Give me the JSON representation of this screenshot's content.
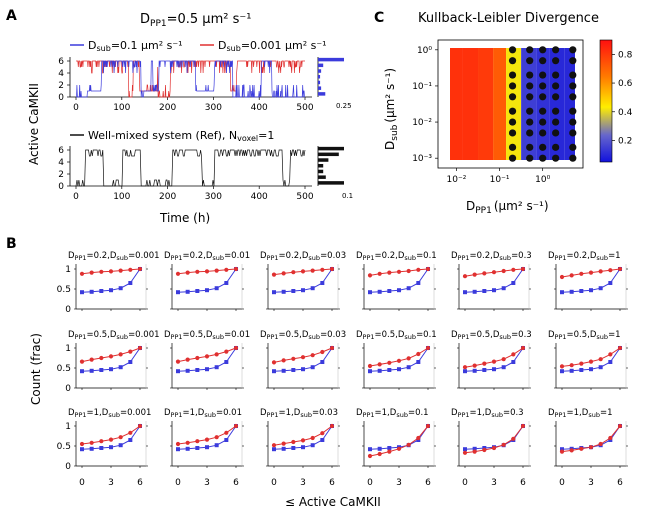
{
  "panel_labels": {
    "a": "A",
    "b": "B",
    "c": "C"
  },
  "colors": {
    "blue": "#3b3bdc",
    "red": "#e03030",
    "black": "#111111"
  },
  "panel_a": {
    "title": "D_PP1 = 0.5 µm² s⁻¹",
    "title_main": "D",
    "title_sub": "PP1",
    "title_rest": "=0.5 µm² s⁻¹",
    "legend_blue": "D_sub=0.1 µm² s⁻¹",
    "legend_blue_main": "D",
    "legend_blue_sub": "sub",
    "legend_blue_rest": "=0.1 µm² s⁻¹",
    "legend_red": "D_sub=0.001 µm² s⁻¹",
    "legend_red_main": "D",
    "legend_red_sub": "sub",
    "legend_red_rest": "=0.001 µm² s⁻¹",
    "legend_black_main": "Well-mixed system (Ref), N",
    "legend_black_sub": "voxel",
    "legend_black_rest": "=1",
    "ylabel": "Active CaMKII",
    "xlabel": "Time (h)",
    "xticks": [
      0,
      100,
      200,
      300,
      400,
      500
    ],
    "yticks": [
      0,
      2,
      4,
      6
    ],
    "xlim": [
      0,
      500
    ],
    "ylim": [
      0,
      6
    ],
    "hist_top_max_label": "0.25",
    "hist_bottom_max_label": "0.1",
    "hist_top": [
      0.07,
      0.03,
      0.02,
      0.02,
      0.03,
      0.05,
      0.25
    ],
    "hist_bottom": [
      0.1,
      0.03,
      0.02,
      0.02,
      0.04,
      0.08,
      0.1
    ]
  },
  "panel_c": {
    "title": "Kullback-Leibler Divergence",
    "ylabel_main": "D",
    "ylabel_sub": "sub",
    "ylabel_units": "(µm² s⁻¹)",
    "xlabel_main": "D",
    "xlabel_sub": "PP1",
    "xlabel_units": "(µm² s⁻¹)",
    "x_tick_labels": [
      "10⁻²",
      "10⁻¹",
      "10⁰"
    ],
    "y_tick_labels": [
      "10⁰",
      "10⁻¹",
      "10⁻²",
      "10⁻³"
    ],
    "colorbar_ticks": [
      "0.8",
      "0.6",
      "0.4",
      "0.2"
    ],
    "colorbar_range": [
      0.05,
      0.9
    ],
    "columns_dpp1": [
      0.01,
      0.02,
      0.05,
      0.1,
      0.2,
      0.5,
      1,
      2,
      5
    ],
    "column_kl": [
      0.82,
      0.82,
      0.8,
      0.72,
      0.42,
      0.15,
      0.12,
      0.1,
      0.1
    ],
    "grid_points_x": [
      0.2,
      0.5,
      1,
      2,
      5
    ],
    "grid_points_y": [
      0.001,
      0.002,
      0.005,
      0.01,
      0.02,
      0.05,
      0.1,
      0.2,
      0.5,
      1
    ]
  },
  "panel_b": {
    "ylabel": "Count (frac)",
    "xlabel": "≤ Active CaMKII",
    "xticks": [
      "0",
      "3",
      "6"
    ],
    "yticks": [
      "0",
      "0.5",
      "1"
    ],
    "rows": [
      {
        "dpp1": "0.2",
        "panels": [
          {
            "dsub": "0.001",
            "red": [
              0.88,
              0.91,
              0.93,
              0.94,
              0.96,
              0.98,
              1.0
            ],
            "blue": [
              0.42,
              0.43,
              0.45,
              0.47,
              0.52,
              0.65,
              1.0
            ]
          },
          {
            "dsub": "0.01",
            "red": [
              0.88,
              0.91,
              0.93,
              0.94,
              0.96,
              0.98,
              1.0
            ],
            "blue": [
              0.42,
              0.43,
              0.45,
              0.47,
              0.52,
              0.65,
              1.0
            ]
          },
          {
            "dsub": "0.03",
            "red": [
              0.86,
              0.89,
              0.92,
              0.94,
              0.96,
              0.98,
              1.0
            ],
            "blue": [
              0.42,
              0.43,
              0.45,
              0.47,
              0.52,
              0.65,
              1.0
            ]
          },
          {
            "dsub": "0.1",
            "red": [
              0.84,
              0.88,
              0.91,
              0.93,
              0.95,
              0.98,
              1.0
            ],
            "blue": [
              0.42,
              0.43,
              0.45,
              0.47,
              0.52,
              0.65,
              1.0
            ]
          },
          {
            "dsub": "0.3",
            "red": [
              0.82,
              0.86,
              0.89,
              0.92,
              0.95,
              0.98,
              1.0
            ],
            "blue": [
              0.42,
              0.43,
              0.45,
              0.47,
              0.52,
              0.65,
              1.0
            ]
          },
          {
            "dsub": "1",
            "red": [
              0.8,
              0.84,
              0.88,
              0.91,
              0.94,
              0.97,
              1.0
            ],
            "blue": [
              0.42,
              0.43,
              0.45,
              0.47,
              0.52,
              0.65,
              1.0
            ]
          }
        ]
      },
      {
        "dpp1": "0.5",
        "panels": [
          {
            "dsub": "0.001",
            "red": [
              0.66,
              0.71,
              0.75,
              0.79,
              0.84,
              0.91,
              1.0
            ],
            "blue": [
              0.42,
              0.43,
              0.45,
              0.47,
              0.52,
              0.65,
              1.0
            ]
          },
          {
            "dsub": "0.01",
            "red": [
              0.66,
              0.71,
              0.75,
              0.79,
              0.84,
              0.91,
              1.0
            ],
            "blue": [
              0.42,
              0.43,
              0.45,
              0.47,
              0.52,
              0.65,
              1.0
            ]
          },
          {
            "dsub": "0.03",
            "red": [
              0.64,
              0.69,
              0.73,
              0.77,
              0.82,
              0.9,
              1.0
            ],
            "blue": [
              0.42,
              0.43,
              0.45,
              0.47,
              0.52,
              0.65,
              1.0
            ]
          },
          {
            "dsub": "0.1",
            "red": [
              0.55,
              0.59,
              0.63,
              0.68,
              0.74,
              0.85,
              1.0
            ],
            "blue": [
              0.42,
              0.43,
              0.45,
              0.47,
              0.52,
              0.65,
              1.0
            ]
          },
          {
            "dsub": "0.3",
            "red": [
              0.52,
              0.56,
              0.61,
              0.66,
              0.72,
              0.84,
              1.0
            ],
            "blue": [
              0.42,
              0.43,
              0.45,
              0.47,
              0.52,
              0.65,
              1.0
            ]
          },
          {
            "dsub": "1",
            "red": [
              0.54,
              0.57,
              0.61,
              0.66,
              0.72,
              0.84,
              1.0
            ],
            "blue": [
              0.42,
              0.43,
              0.45,
              0.47,
              0.52,
              0.65,
              1.0
            ]
          }
        ]
      },
      {
        "dpp1": "1",
        "panels": [
          {
            "dsub": "0.001",
            "red": [
              0.55,
              0.58,
              0.62,
              0.66,
              0.72,
              0.83,
              1.0
            ],
            "blue": [
              0.42,
              0.43,
              0.45,
              0.47,
              0.52,
              0.65,
              1.0
            ]
          },
          {
            "dsub": "0.01",
            "red": [
              0.55,
              0.58,
              0.62,
              0.66,
              0.72,
              0.83,
              1.0
            ],
            "blue": [
              0.42,
              0.43,
              0.45,
              0.47,
              0.52,
              0.65,
              1.0
            ]
          },
          {
            "dsub": "0.03",
            "red": [
              0.52,
              0.56,
              0.6,
              0.64,
              0.7,
              0.82,
              1.0
            ],
            "blue": [
              0.42,
              0.43,
              0.45,
              0.47,
              0.52,
              0.65,
              1.0
            ]
          },
          {
            "dsub": "0.1",
            "red": [
              0.25,
              0.3,
              0.36,
              0.43,
              0.53,
              0.7,
              1.0
            ],
            "blue": [
              0.42,
              0.43,
              0.45,
              0.47,
              0.52,
              0.65,
              1.0
            ]
          },
          {
            "dsub": "0.3",
            "red": [
              0.33,
              0.36,
              0.4,
              0.45,
              0.53,
              0.68,
              1.0
            ],
            "blue": [
              0.42,
              0.43,
              0.45,
              0.47,
              0.52,
              0.65,
              1.0
            ]
          },
          {
            "dsub": "1",
            "red": [
              0.36,
              0.39,
              0.43,
              0.47,
              0.55,
              0.7,
              1.0
            ],
            "blue": [
              0.42,
              0.43,
              0.45,
              0.47,
              0.52,
              0.65,
              1.0
            ]
          }
        ]
      }
    ]
  },
  "chart_data": [
    {
      "type": "line",
      "panel": "A-top",
      "title": "D_PP1=0.5 µm² s⁻¹",
      "xlabel": "Time (h)",
      "ylabel": "Active CaMKII",
      "xlim": [
        0,
        500
      ],
      "ylim": [
        0,
        6
      ],
      "series": [
        {
          "name": "D_sub=0.1 µm² s⁻¹"
        },
        {
          "name": "D_sub=0.001 µm² s⁻¹"
        }
      ]
    },
    {
      "type": "line",
      "panel": "A-bottom",
      "xlabel": "Time (h)",
      "xlim": [
        0,
        500
      ],
      "ylim": [
        0,
        6
      ],
      "series": [
        {
          "name": "Well-mixed system (Ref), N_voxel=1"
        }
      ]
    },
    {
      "type": "heatmap",
      "panel": "C",
      "title": "Kullback-Leibler Divergence",
      "xlabel": "D_PP1 (µm² s⁻¹)",
      "ylabel": "D_sub (µm² s⁻¹)",
      "colorbar_range": [
        0.05,
        0.9
      ]
    },
    {
      "type": "line",
      "panel": "B",
      "xlabel": "≤ Active CaMKII",
      "ylabel": "Count (frac)",
      "x": [
        0,
        1,
        2,
        3,
        4,
        5,
        6
      ],
      "ylim": [
        0,
        1
      ]
    }
  ]
}
